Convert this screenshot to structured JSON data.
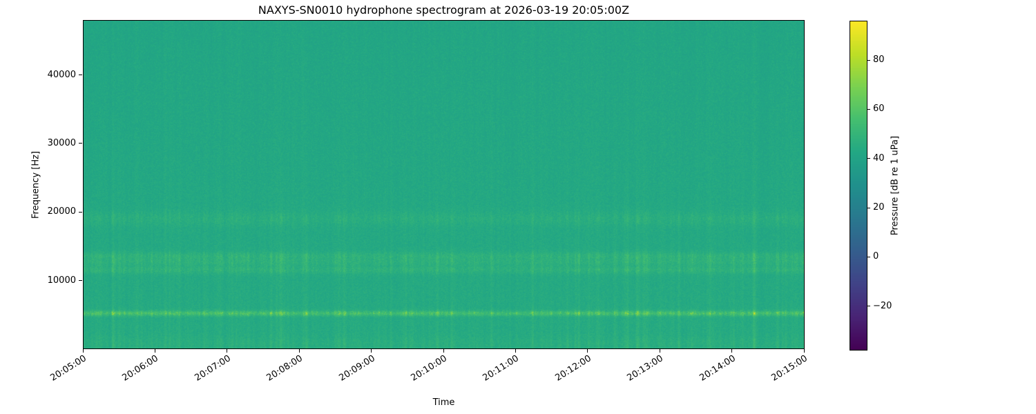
{
  "figure": {
    "title": "NAXYS-SN0010 hydrophone spectrogram at 2026-03-19 20:05:00Z"
  },
  "chart_data": {
    "type": "heatmap",
    "title": "NAXYS-SN0010 hydrophone spectrogram at 2026-03-19 20:05:00Z",
    "xlabel": "Time",
    "ylabel": "Frequency [Hz]",
    "x_tick_labels": [
      "20:05:00",
      "20:06:00",
      "20:07:00",
      "20:08:00",
      "20:09:00",
      "20:10:00",
      "20:11:00",
      "20:12:00",
      "20:13:00",
      "20:14:00",
      "20:15:00"
    ],
    "y_ticks": [
      10000,
      20000,
      30000,
      40000
    ],
    "ylim": [
      0,
      48000
    ],
    "grid": false,
    "legend": "none",
    "colorbar": {
      "label": "Pressure [dB re 1 uPa]",
      "ticks": [
        -20,
        0,
        20,
        40,
        60,
        80
      ],
      "vmin": -38,
      "vmax": 96,
      "colormap": "viridis",
      "position": "right"
    },
    "background_db": 44,
    "noise_db": 3,
    "spectral_slope_db": -2,
    "broadband_click_db": 6,
    "bands": [
      {
        "center_hz": 5100,
        "sigma_hz": 260,
        "peak_db": 34,
        "note": "strong impulsive tonal band ~5 kHz, speckled yellow"
      },
      {
        "center_hz": 11500,
        "sigma_hz": 420,
        "peak_db": 12,
        "note": "moderate band"
      },
      {
        "center_hz": 12600,
        "sigma_hz": 350,
        "peak_db": 10,
        "note": "moderate band"
      },
      {
        "center_hz": 13500,
        "sigma_hz": 430,
        "peak_db": 13,
        "note": "moderate band"
      },
      {
        "center_hz": 19000,
        "sigma_hz": 750,
        "peak_db": 8,
        "note": "faint band ~19 kHz"
      },
      {
        "center_hz": 800,
        "sigma_hz": 600,
        "peak_db": 4,
        "note": "low-frequency texture near bottom"
      }
    ],
    "prominent_events_t_frac": [
      {
        "t_frac": 0.19,
        "gain": 0.55
      },
      {
        "t_frac": 0.41,
        "gain": 0.6
      },
      {
        "t_frac": 0.672,
        "gain": 0.55
      },
      {
        "t_frac": 0.77,
        "gain": 0.55
      },
      {
        "t_frac": 0.87,
        "gain": 0.5
      },
      {
        "t_frac": 0.932,
        "gain": 1.1
      }
    ]
  }
}
